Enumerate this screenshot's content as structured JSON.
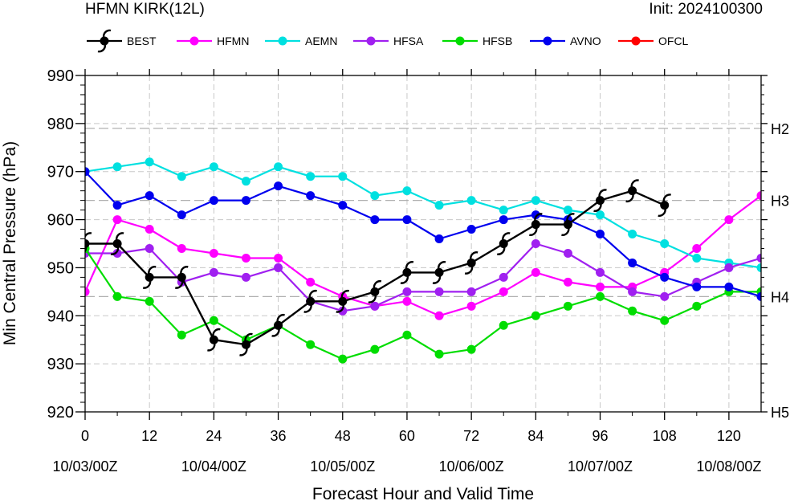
{
  "header": {
    "title": "HFMN KIRK(12L)",
    "init": "Init: 2024100300"
  },
  "chart_data": {
    "type": "line",
    "xlabel": "Forecast Hour and Valid Time",
    "ylabel": "Min Central Pressure (hPa)",
    "xlim": [
      0,
      126
    ],
    "ylim": [
      920,
      990
    ],
    "x_ticks": [
      0,
      12,
      24,
      36,
      48,
      60,
      72,
      84,
      96,
      108,
      120
    ],
    "x_tick_labels": [
      "0",
      "12",
      "24",
      "36",
      "48",
      "60",
      "72",
      "84",
      "96",
      "108",
      "120"
    ],
    "date_ticks": [
      {
        "x": 0,
        "label": "10/03/00Z"
      },
      {
        "x": 24,
        "label": "10/04/00Z"
      },
      {
        "x": 48,
        "label": "10/05/00Z"
      },
      {
        "x": 72,
        "label": "10/06/00Z"
      },
      {
        "x": 96,
        "label": "10/07/00Z"
      },
      {
        "x": 120,
        "label": "10/08/00Z"
      }
    ],
    "y_ticks": [
      920,
      930,
      940,
      950,
      960,
      970,
      980,
      990
    ],
    "intensity_lines": [
      {
        "label": "H2",
        "y": 979
      },
      {
        "label": "H3",
        "y": 964
      },
      {
        "label": "H4",
        "y": 944
      },
      {
        "label": "H5",
        "y": 920
      }
    ],
    "grid": "dashed",
    "legend": "top",
    "series": [
      {
        "name": "BEST",
        "color": "#000000",
        "marker": "hurricane",
        "x": [
          0,
          6,
          12,
          18,
          24,
          30,
          36,
          42,
          48,
          54,
          60,
          66,
          72,
          78,
          84,
          90,
          96,
          102,
          108
        ],
        "y": [
          955,
          955,
          948,
          948,
          935,
          934,
          938,
          943,
          943,
          945,
          949,
          949,
          951,
          955,
          959,
          959,
          964,
          966,
          963
        ]
      },
      {
        "name": "HFMN",
        "color": "#ff00ff",
        "marker": "dot",
        "x": [
          0,
          6,
          12,
          18,
          24,
          30,
          36,
          42,
          48,
          54,
          60,
          66,
          72,
          78,
          84,
          90,
          96,
          102,
          108,
          114,
          120,
          126
        ],
        "y": [
          945,
          960,
          958,
          954,
          953,
          952,
          952,
          947,
          944,
          942,
          943,
          940,
          942,
          945,
          949,
          947,
          946,
          946,
          949,
          954,
          960,
          965
        ]
      },
      {
        "name": "AEMN",
        "color": "#00e0e0",
        "marker": "dot",
        "x": [
          0,
          6,
          12,
          18,
          24,
          30,
          36,
          42,
          48,
          54,
          60,
          66,
          72,
          78,
          84,
          90,
          96,
          102,
          108,
          114,
          120,
          126
        ],
        "y": [
          970,
          971,
          972,
          969,
          971,
          968,
          971,
          969,
          969,
          965,
          966,
          963,
          964,
          962,
          964,
          962,
          961,
          957,
          955,
          952,
          951,
          950
        ]
      },
      {
        "name": "HFSA",
        "color": "#a020f0",
        "marker": "dot",
        "x": [
          0,
          6,
          12,
          18,
          24,
          30,
          36,
          42,
          48,
          54,
          60,
          66,
          72,
          78,
          84,
          90,
          96,
          102,
          108,
          114,
          120,
          126
        ],
        "y": [
          953,
          953,
          954,
          947,
          949,
          948,
          950,
          943,
          941,
          942,
          945,
          945,
          945,
          948,
          955,
          953,
          949,
          945,
          944,
          947,
          950,
          952
        ]
      },
      {
        "name": "HFSB",
        "color": "#00dd00",
        "marker": "dot",
        "x": [
          0,
          6,
          12,
          18,
          24,
          30,
          36,
          42,
          48,
          54,
          60,
          66,
          72,
          78,
          84,
          90,
          96,
          102,
          108,
          114,
          120,
          126
        ],
        "y": [
          954,
          944,
          943,
          936,
          939,
          935,
          938,
          934,
          931,
          933,
          936,
          932,
          933,
          938,
          940,
          942,
          944,
          941,
          939,
          942,
          945,
          945
        ]
      },
      {
        "name": "AVNO",
        "color": "#0000ee",
        "marker": "dot",
        "x": [
          0,
          6,
          12,
          18,
          24,
          30,
          36,
          42,
          48,
          54,
          60,
          66,
          72,
          78,
          84,
          90,
          96,
          102,
          108,
          114,
          120,
          126
        ],
        "y": [
          970,
          963,
          965,
          961,
          964,
          964,
          967,
          965,
          963,
          960,
          960,
          956,
          958,
          960,
          961,
          960,
          957,
          951,
          948,
          946,
          946,
          944
        ]
      },
      {
        "name": "OFCL",
        "color": "#ff0000",
        "marker": "dot",
        "x": [],
        "y": []
      }
    ]
  }
}
